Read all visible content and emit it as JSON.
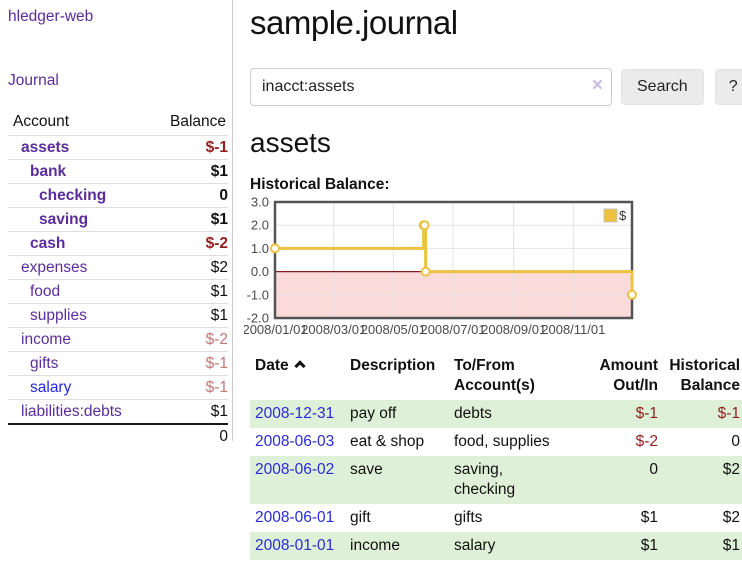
{
  "app": {
    "brand": "hledger-web",
    "nav": {
      "journal": "Journal"
    }
  },
  "sidebar": {
    "header": {
      "account": "Account",
      "balance": "Balance"
    },
    "rows": [
      {
        "name": "assets",
        "balance": "$-1"
      },
      {
        "name": "bank",
        "balance": "$1"
      },
      {
        "name": "checking",
        "balance": "0"
      },
      {
        "name": "saving",
        "balance": "$1"
      },
      {
        "name": "cash",
        "balance": "$-2"
      },
      {
        "name": "expenses",
        "balance": "$2"
      },
      {
        "name": "food",
        "balance": "$1"
      },
      {
        "name": "supplies",
        "balance": "$1"
      },
      {
        "name": "income",
        "balance": "$-2"
      },
      {
        "name": "gifts",
        "balance": "$-1"
      },
      {
        "name": "salary",
        "balance": "$-1"
      },
      {
        "name": "liabilities:debts",
        "balance": "$1"
      }
    ],
    "total": "0"
  },
  "main": {
    "title": "sample.journal",
    "search": {
      "value": "inacct:assets",
      "clear_icon": "×",
      "button": "Search",
      "help": "?"
    },
    "account_heading": "assets"
  },
  "chart_data": {
    "type": "line",
    "style": "step",
    "title": "Historical Balance:",
    "legend": [
      {
        "label": "$",
        "color": "#edc240"
      }
    ],
    "legend_position": "top-right",
    "grid": true,
    "ylim": [
      -2,
      3
    ],
    "yticks": [
      {
        "v": 3,
        "label": "3.0"
      },
      {
        "v": 2,
        "label": "2.0"
      },
      {
        "v": 1,
        "label": "1.0"
      },
      {
        "v": 0,
        "label": "0.0"
      },
      {
        "v": -1,
        "label": "-1.0"
      },
      {
        "v": -2,
        "label": "-2.0"
      }
    ],
    "xrange": [
      "2008-01-01",
      "2008-12-31"
    ],
    "xticks": [
      {
        "date": "2008-01-01",
        "label": "2008/01/01"
      },
      {
        "date": "2008-03-01",
        "label": "2008/03/01"
      },
      {
        "date": "2008-05-01",
        "label": "2008/05/01"
      },
      {
        "date": "2008-07-01",
        "label": "2008/07/01"
      },
      {
        "date": "2008-09-01",
        "label": "2008/09/01"
      },
      {
        "date": "2008-11-01",
        "label": "2008/11/01"
      }
    ],
    "series": [
      {
        "name": "$",
        "color": "#edc240",
        "marker": "open-circle",
        "points": [
          {
            "date": "2008-01-01",
            "value": 1
          },
          {
            "date": "2008-06-01",
            "value": 2
          },
          {
            "date": "2008-06-02",
            "value": 2
          },
          {
            "date": "2008-06-03",
            "value": 0
          },
          {
            "date": "2008-12-31",
            "value": -1
          }
        ]
      }
    ],
    "colors": {
      "negative_band": "#fbdada",
      "zero_line": "#8b1a1a",
      "grid": "#e4e4e4",
      "border": "#545454",
      "axis_text": "#4a4a4a"
    }
  },
  "register": {
    "headers": {
      "date": "Date",
      "description": "Description",
      "accounts": "To/From\nAccount(s)",
      "amount": "Amount\nOut/In",
      "balance": "Historical\nBalance"
    },
    "rows": [
      {
        "date": "2008-12-31",
        "description": "pay off",
        "accounts": "debts",
        "amount": "$-1",
        "balance": "$-1"
      },
      {
        "date": "2008-06-03",
        "description": "eat & shop",
        "accounts": "food, supplies",
        "amount": "$-2",
        "balance": "0"
      },
      {
        "date": "2008-06-02",
        "description": "save",
        "accounts": "saving, checking",
        "amount": "0",
        "balance": "$2"
      },
      {
        "date": "2008-06-01",
        "description": "gift",
        "accounts": "gifts",
        "amount": "$1",
        "balance": "$2"
      },
      {
        "date": "2008-01-01",
        "description": "income",
        "accounts": "salary",
        "amount": "$1",
        "balance": "$1"
      }
    ]
  }
}
